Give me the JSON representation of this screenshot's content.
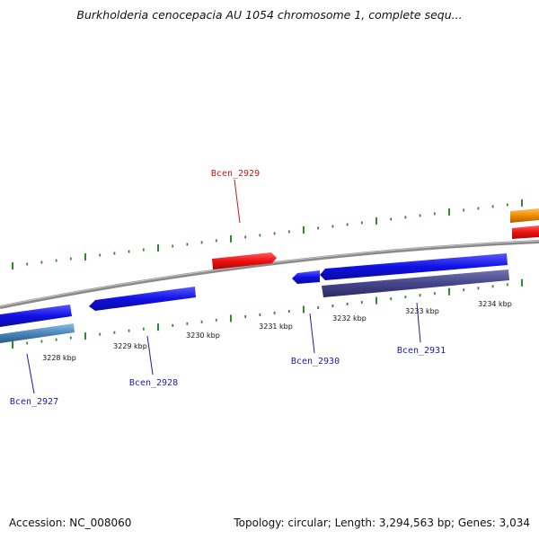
{
  "title": "Burkholderia cenocepacia AU 1054 chromosome 1, complete sequ...",
  "footer": {
    "accession": "Accession: NC_008060",
    "summary": "Topology: circular; Length: 3,294,563 bp; Genes: 3,034"
  },
  "scale_labels": [
    "3228 kbp",
    "3229 kbp",
    "3230 kbp",
    "3231 kbp",
    "3232 kbp",
    "3233 kbp",
    "3234 kbp"
  ],
  "gene_labels": [
    {
      "id": "Bcen_2927",
      "color": "#1a1aa8"
    },
    {
      "id": "Bcen_2928",
      "color": "#1a1aa8"
    },
    {
      "id": "Bcen_2929",
      "color": "#c81414"
    },
    {
      "id": "Bcen_2930",
      "color": "#1a1aa8"
    },
    {
      "id": "Bcen_2931",
      "color": "#1a1aa8"
    }
  ],
  "colors": {
    "backbone": "#8a8a8a",
    "tick": "#2e8b2e",
    "gene_forward": "#e01010",
    "gene_reverse": "#1414e0",
    "cds_reverse": "#4a4a8c",
    "cds_light": "#4a86b8",
    "gene_orange": "#f08c00"
  }
}
